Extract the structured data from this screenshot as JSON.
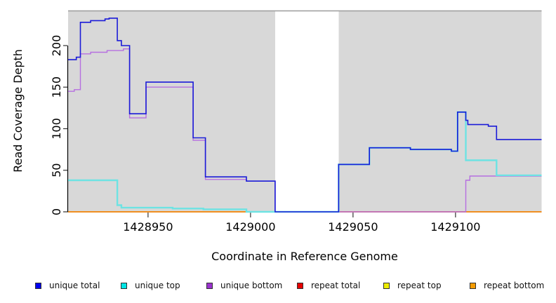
{
  "chart_data": {
    "type": "line",
    "subtype": "step-coverage-plot",
    "title": "",
    "xlabel": "Coordinate in Reference Genome",
    "ylabel": "Read Coverage Depth",
    "xlim": [
      1428911,
      1429142
    ],
    "ylim": [
      0,
      242
    ],
    "grid": false,
    "x_ticks": [
      {
        "value": 1428950,
        "label": "1428950"
      },
      {
        "value": 1429000,
        "label": "1429000"
      },
      {
        "value": 1429050,
        "label": "1429050"
      },
      {
        "value": 1429100,
        "label": "1429100"
      }
    ],
    "y_ticks": [
      {
        "value": 0,
        "label": "0"
      },
      {
        "value": 50,
        "label": "50"
      },
      {
        "value": 100,
        "label": "100"
      },
      {
        "value": 150,
        "label": "150"
      },
      {
        "value": 200,
        "label": "200"
      }
    ],
    "shaded_regions": [
      {
        "x1": 1428911,
        "x2": 1429012,
        "color": "#d8d8d8",
        "meaning": "covered segment"
      },
      {
        "x1": 1429043,
        "x2": 1429142,
        "color": "#d8d8d8",
        "meaning": "covered segment"
      }
    ],
    "styles": {
      "plot_bg": "#ffffff",
      "axis_color": "#000000",
      "tick_color": "#333333",
      "top_border_color": "#9c9c9c"
    },
    "series": [
      {
        "name": "repeat top",
        "color": "#e8e820",
        "legend_color": "#EDED00",
        "width": 1.4,
        "z": 1,
        "points": [
          [
            1428911,
            0
          ]
        ]
      },
      {
        "name": "repeat total",
        "color": "#e02020",
        "legend_color": "#E60000",
        "width": 1.4,
        "z": 2,
        "points": [
          [
            1428911,
            0
          ]
        ]
      },
      {
        "name": "repeat bottom",
        "color": "#f59410",
        "legend_color": "#F59B00",
        "width": 1.6,
        "z": 3,
        "points": [
          [
            1428911,
            0
          ]
        ]
      },
      {
        "name": "unique bottom",
        "color": "#b66fe0",
        "legend_color": "#9A32CD",
        "width": 1.4,
        "z": 4,
        "points": [
          [
            1428911,
            145
          ],
          [
            1428914,
            147
          ],
          [
            1428917,
            190
          ],
          [
            1428922,
            192
          ],
          [
            1428930,
            194
          ],
          [
            1428938,
            196
          ],
          [
            1428941,
            113
          ],
          [
            1428949,
            150
          ],
          [
            1428972,
            86
          ],
          [
            1428978,
            39
          ],
          [
            1428998,
            37
          ],
          [
            1429012,
            0
          ],
          [
            1429105,
            38
          ],
          [
            1429107,
            43
          ]
        ]
      },
      {
        "name": "unique top",
        "color": "#6ee3e3",
        "legend_color": "#00E5E5",
        "width": 2.4,
        "z": 5,
        "points": [
          [
            1428911,
            38
          ],
          [
            1428935,
            8
          ],
          [
            1428937,
            5
          ],
          [
            1428962,
            4
          ],
          [
            1428977,
            3
          ],
          [
            1428998,
            0
          ],
          [
            1429043,
            57
          ],
          [
            1429058,
            77
          ],
          [
            1429078,
            75
          ],
          [
            1429098,
            73
          ],
          [
            1429101,
            120
          ],
          [
            1429105,
            62
          ],
          [
            1429120,
            44
          ]
        ]
      },
      {
        "name": "unique total",
        "color": "#1b1bd8",
        "legend_color": "#0000EE",
        "width": 1.6,
        "z": 6,
        "points": [
          [
            1428911,
            183
          ],
          [
            1428915,
            186
          ],
          [
            1428917,
            228
          ],
          [
            1428922,
            230
          ],
          [
            1428929,
            232
          ],
          [
            1428931,
            233
          ],
          [
            1428935,
            206
          ],
          [
            1428937,
            200
          ],
          [
            1428941,
            118
          ],
          [
            1428949,
            156
          ],
          [
            1428972,
            89
          ],
          [
            1428978,
            42
          ],
          [
            1428998,
            37
          ],
          [
            1429012,
            0
          ],
          [
            1429043,
            57
          ],
          [
            1429058,
            77
          ],
          [
            1429078,
            75
          ],
          [
            1429098,
            73
          ],
          [
            1429101,
            120
          ],
          [
            1429105,
            110
          ],
          [
            1429106,
            105
          ],
          [
            1429116,
            103
          ],
          [
            1429120,
            87
          ]
        ]
      }
    ],
    "legend": {
      "position": "bottom",
      "items": [
        {
          "label": "unique total",
          "color": "#0000EE"
        },
        {
          "label": "unique top",
          "color": "#00E5E5"
        },
        {
          "label": "unique bottom",
          "color": "#9A32CD"
        },
        {
          "label": "repeat total",
          "color": "#E60000"
        },
        {
          "label": "repeat top",
          "color": "#EDED00"
        },
        {
          "label": "repeat bottom",
          "color": "#F59B00"
        }
      ]
    }
  }
}
